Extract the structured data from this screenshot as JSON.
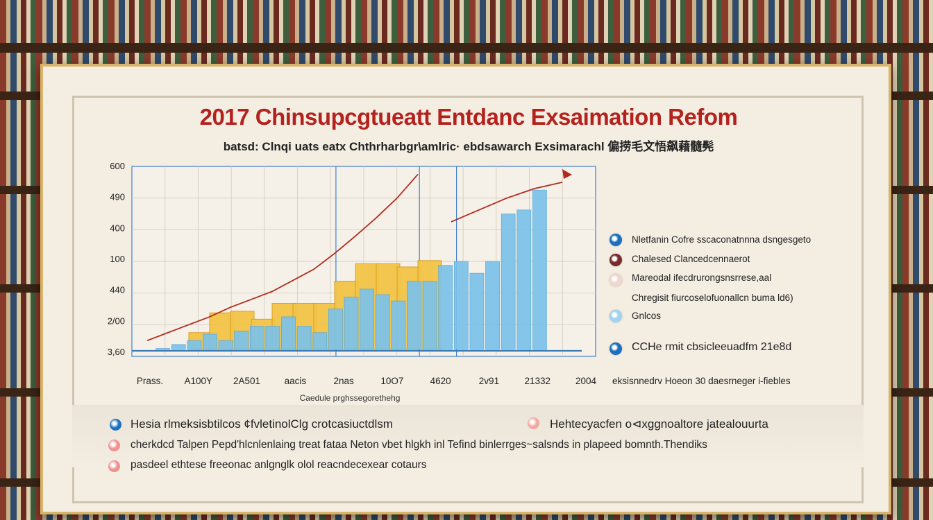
{
  "title": "2017 Chinsupcgtueatt Entdanc Exsaimation Refom",
  "subtitle": "batsd: Clnqi uats eatx Chthrharbgr\\amlric· ebdsawarch Exsimarachl 偏捞毛文悟飙藉髓髡",
  "chart_data": {
    "type": "bar",
    "title": "",
    "xlabel": "Caedule prghssegorethehg",
    "ylabel": "",
    "y_tick_labels": [
      "600",
      "490",
      "400",
      "100",
      "440",
      "2/00",
      "3,60"
    ],
    "x_tick_labels": [
      "Prass.",
      "A100Y",
      "2A501",
      "aacis",
      "2nas",
      "10O7",
      "4620",
      "2v91",
      "21332",
      "2004"
    ],
    "bars": [
      {
        "color": "#f2c447",
        "values": [
          0,
          0,
          0,
          0,
          0,
          0,
          0,
          0,
          0,
          0,
          0,
          0,
          0,
          0,
          0,
          0,
          0,
          0,
          0,
          0,
          0,
          0,
          0,
          0,
          0,
          0,
          0,
          0,
          0,
          0,
          0,
          0
        ]
      },
      {
        "color": "#f2c447",
        "values": [
          0,
          0,
          0,
          0,
          0,
          0,
          0,
          0,
          0,
          0,
          0,
          0,
          0,
          0,
          0,
          0,
          0,
          0,
          0,
          0,
          0,
          0,
          0,
          0,
          0,
          0,
          0,
          0,
          0,
          0,
          0,
          0
        ]
      }
    ],
    "yellow_bars": [
      {
        "x": 0.28,
        "v": 0.3
      },
      {
        "x": 0.38,
        "v": 0.55
      },
      {
        "x": 0.48,
        "v": 0.57
      },
      {
        "x": 0.58,
        "v": 0.47
      },
      {
        "x": 0.68,
        "v": 0.67
      },
      {
        "x": 0.78,
        "v": 0.67
      },
      {
        "x": 0.88,
        "v": 0.67
      },
      {
        "x": 0.98,
        "v": 0.95
      },
      {
        "x": 1.08,
        "v": 1.17
      },
      {
        "x": 1.18,
        "v": 1.17
      },
      {
        "x": 1.28,
        "v": 1.13
      },
      {
        "x": 1.38,
        "v": 1.21
      },
      {
        "x": 1.48,
        "v": 1.13
      },
      {
        "x": 1.58,
        "v": 1.19
      },
      {
        "x": 1.68,
        "v": 1.17
      }
    ],
    "blue_bars": [
      {
        "v": 0.05
      },
      {
        "v": 0.1
      },
      {
        "v": 0.15
      },
      {
        "v": 0.2
      },
      {
        "v": 0.28
      },
      {
        "v": 0.2
      },
      {
        "v": 0.32
      },
      {
        "v": 0.38
      },
      {
        "v": 0.38
      },
      {
        "v": 0.5
      },
      {
        "v": 0.38
      },
      {
        "v": 0.3
      },
      {
        "v": 0.6
      },
      {
        "v": 0.75
      },
      {
        "v": 0.85
      },
      {
        "v": 0.78
      },
      {
        "v": 0.7
      },
      {
        "v": 0.95
      },
      {
        "v": 0.95
      },
      {
        "v": 1.15
      },
      {
        "v": 1.2
      },
      {
        "v": 1.05
      },
      {
        "v": 1.2
      },
      {
        "v": 1.8
      },
      {
        "v": 1.85
      },
      {
        "v": 2.1
      }
    ],
    "trend_line": [
      0.2,
      0.3,
      0.4,
      0.5,
      0.62,
      0.72,
      0.82,
      0.96,
      1.1,
      1.3,
      1.52,
      1.75,
      2.0,
      2.3
    ],
    "trend_line_2": [
      1.7,
      1.85,
      2.0,
      2.12,
      2.2
    ],
    "ylim": [
      0,
      2.4
    ],
    "colors": {
      "yellow": "#f2c447",
      "blue": "#7cc2ea",
      "trend": "#b22a1e",
      "grid": "#d6cfc3",
      "axis": "#3f7fcf"
    }
  },
  "legend": [
    {
      "label": "Nletfanin Cofre sscaconatnnna dsngesgeto",
      "color": "#1a6fbf"
    },
    {
      "label": "Chalesed Clancedcennaerot",
      "color": "#7a2a2a"
    },
    {
      "label": "Mareodal ifecdrurongsnsrrese,aal",
      "color": "#f1d6cf"
    },
    {
      "label": "Chregisit fiurcoselofuonallcn buma ld6)",
      "color": "#ffffff"
    },
    {
      "label": "Gnlcos",
      "color": "#9fd3f2"
    },
    {
      "label": "CCHe rmit cbsicleeuadfm 21e8d",
      "color": "#1a6fbf"
    }
  ],
  "legend_footer": "eksisnnedrv Hoeon 30 daesrneger i-fiebles",
  "notes": [
    {
      "text": "Hesia rlmeksisbtilcos ¢fvletinolClg crotcasiuctdlsm",
      "color": "#1a6fbf"
    },
    {
      "text": "Hehtecyacfen o⊲xggnoaltore jatealouurta",
      "color": "#f0a8a0"
    },
    {
      "text": "cherkdcd Talpen Pepd'hlcnlenlaing treat fataa Neton vbet hlgkh inl Tefind binlerrges~salsnds in plapeed bomnth.Thendiks",
      "color": "#f09090"
    },
    {
      "text": "pasdeel ethtese freeonac anlgnglk olol reacndecexear cotaurs",
      "color": "#f09090"
    }
  ]
}
